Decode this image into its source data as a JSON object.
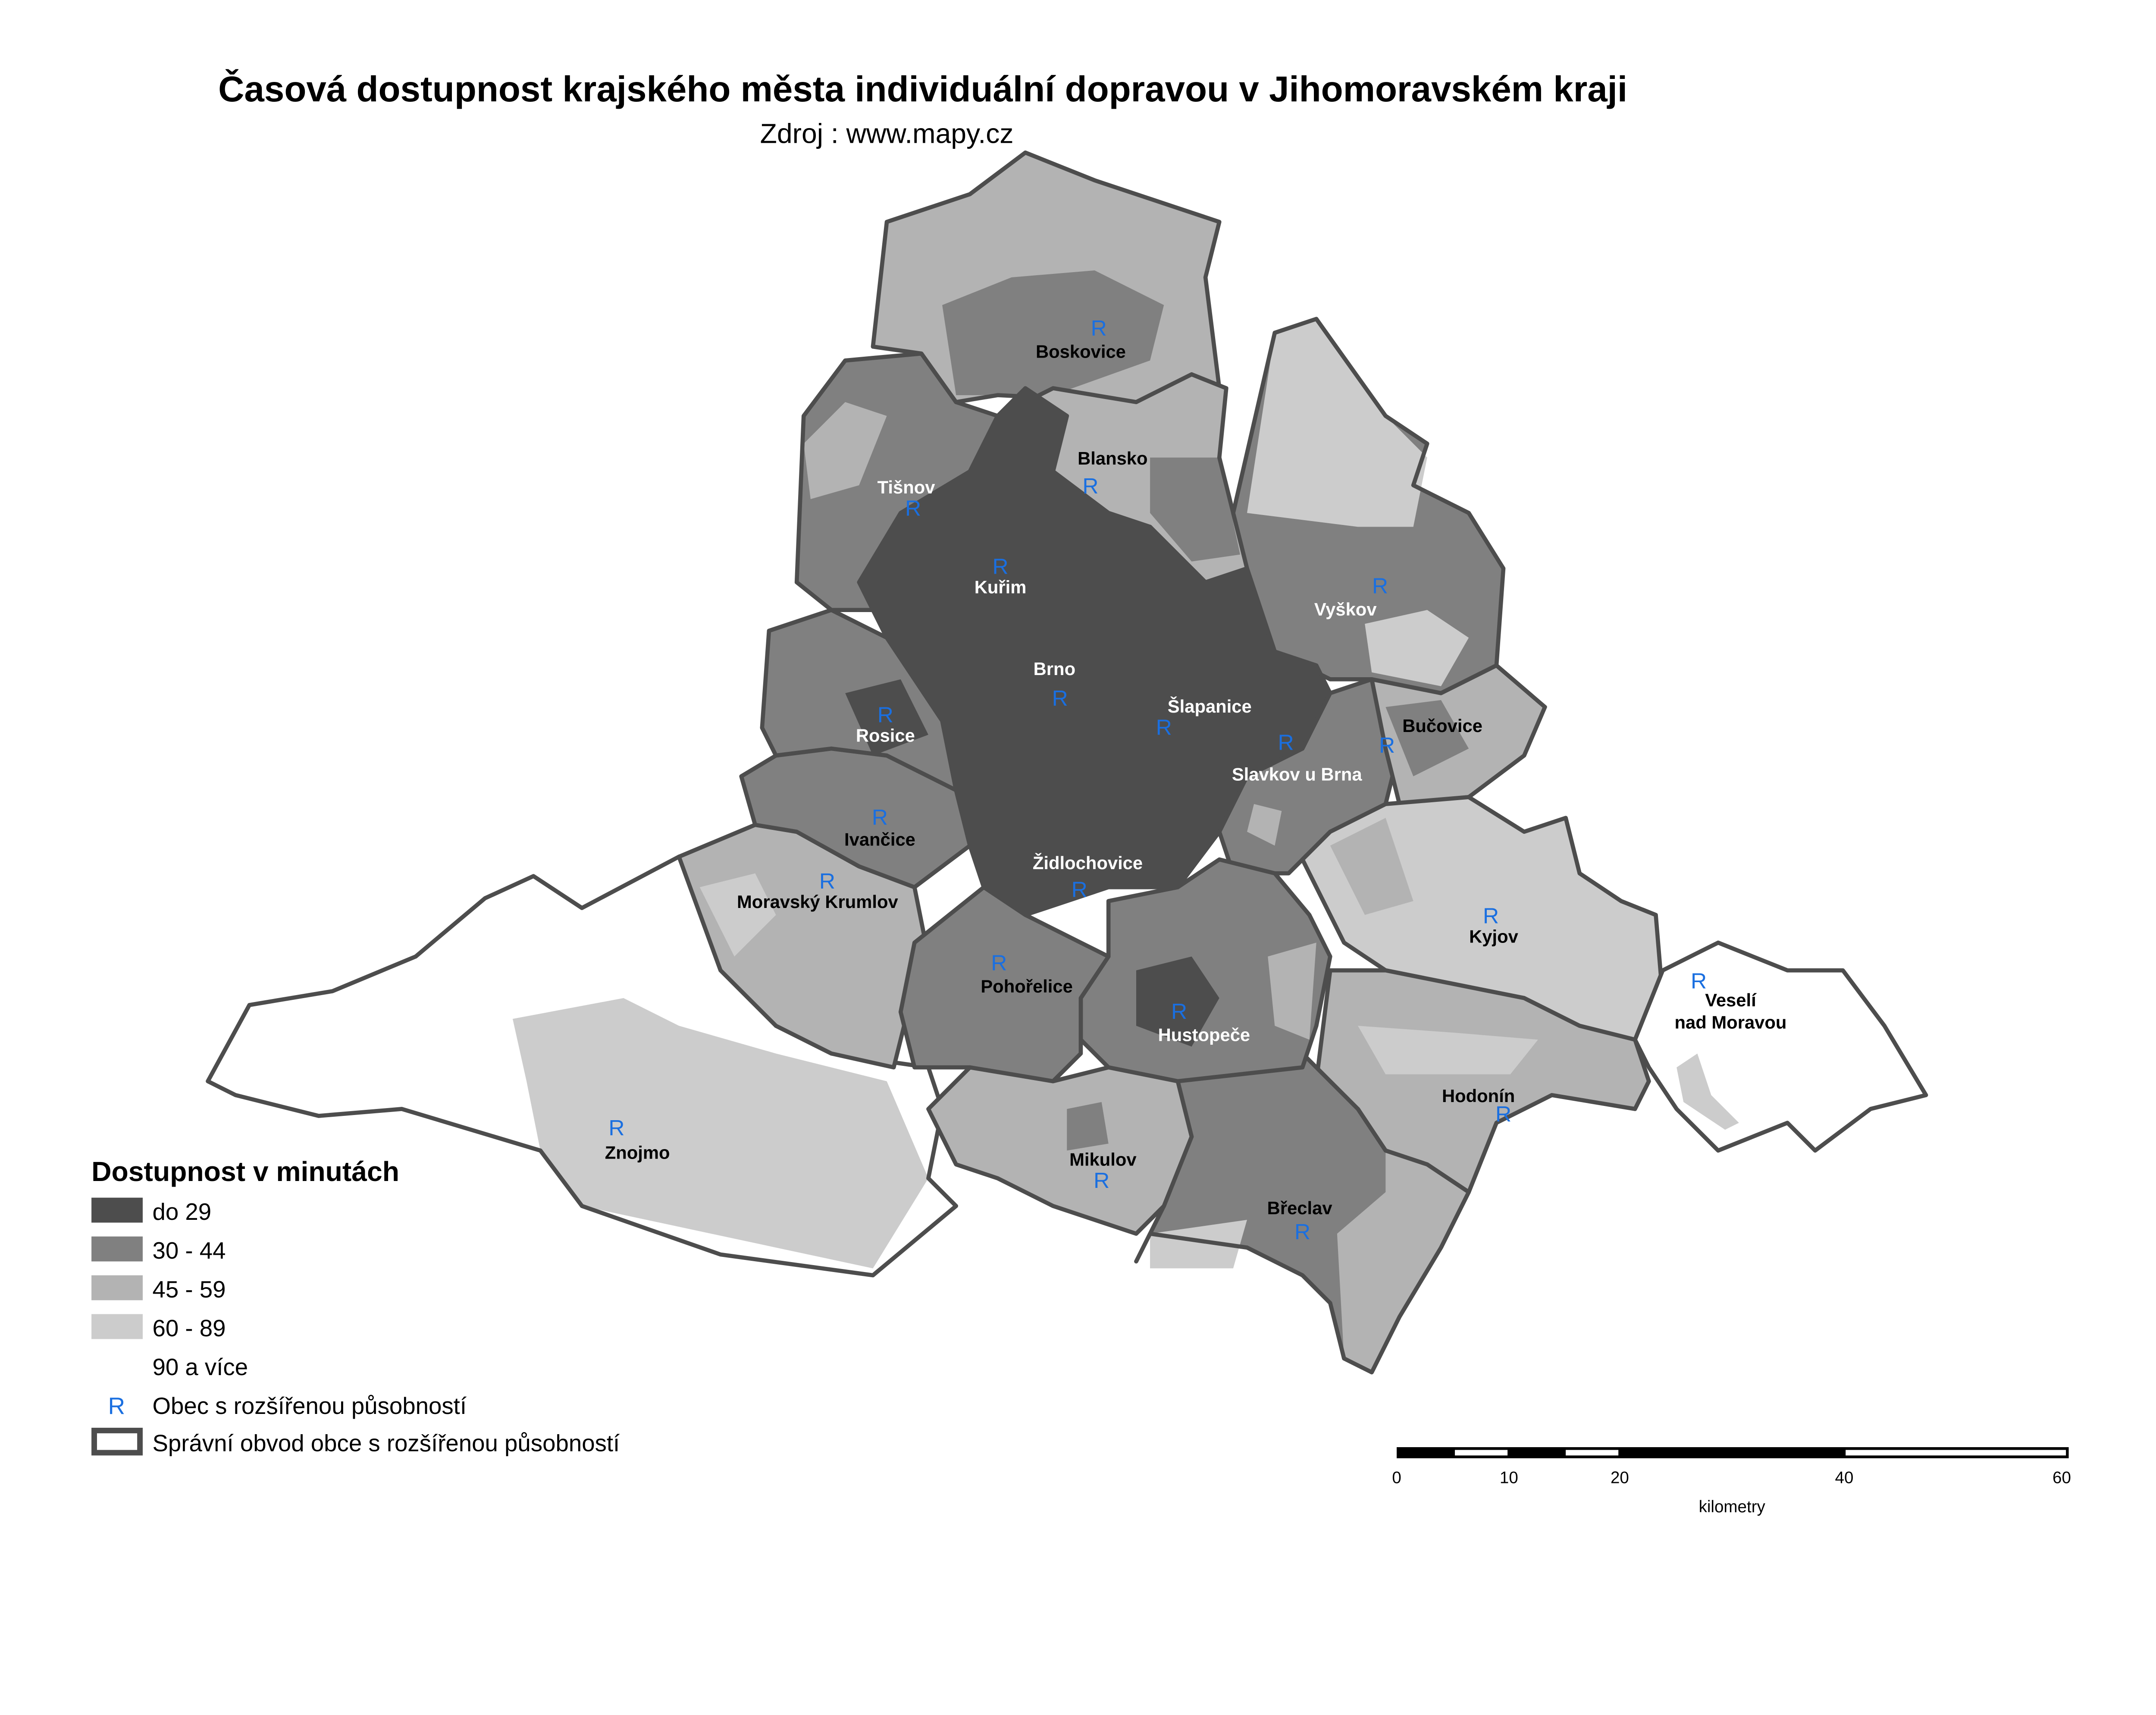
{
  "title": "Časová dostupnost krajského města individuální dopravou v Jihomoravském kraji",
  "source": "Zdroj : www.mapy.cz",
  "colors": {
    "class_do_29": "#4d4d4d",
    "class_30_44": "#808080",
    "class_45_59": "#b3b3b3",
    "class_60_89": "#cccccc",
    "class_90_plus": "#ffffff",
    "r_marker": "#1a6fe0",
    "boundary": "#4d4d4d"
  },
  "legend": {
    "title": "Dostupnost v minutách",
    "classes": [
      "do 29",
      "30 - 44",
      "45 - 59",
      "60 - 89",
      "90 a více"
    ],
    "r_symbol": "R",
    "r_label": "Obec s rozšířenou působností",
    "boundary_label": "Správní obvod obce s rozšířenou působností"
  },
  "scale_bar": {
    "ticks": [
      "0",
      "10",
      "20",
      "40",
      "60"
    ],
    "unit": "kilometry"
  },
  "towns": [
    {
      "name": "Boskovice",
      "class": "45 - 59"
    },
    {
      "name": "Blansko",
      "class": "30 - 44"
    },
    {
      "name": "Tišnov",
      "class": "30 - 44"
    },
    {
      "name": "Kuřim",
      "class": "do 29"
    },
    {
      "name": "Brno",
      "class": "do 29"
    },
    {
      "name": "Šlapanice",
      "class": "do 29"
    },
    {
      "name": "Slavkov u Brna",
      "class": "30 - 44"
    },
    {
      "name": "Vyškov",
      "class": "30 - 44"
    },
    {
      "name": "Bučovice",
      "class": "45 - 59"
    },
    {
      "name": "Rosice",
      "class": "30 - 44"
    },
    {
      "name": "Ivančice",
      "class": "30 - 44"
    },
    {
      "name": "Moravský Krumlov",
      "class": "45 - 59"
    },
    {
      "name": "Židlochovice",
      "class": "do 29"
    },
    {
      "name": "Pohořelice",
      "class": "30 - 44"
    },
    {
      "name": "Hustopeče",
      "class": "30 - 44"
    },
    {
      "name": "Kyjov",
      "class": "60 - 89"
    },
    {
      "name": "Veselí",
      "name2": "nad Moravou",
      "class": "90 a více"
    },
    {
      "name": "Hodonín",
      "class": "45 - 59"
    },
    {
      "name": "Znojmo",
      "class": "60 - 89"
    },
    {
      "name": "Mikulov",
      "class": "45 - 59"
    },
    {
      "name": "Břeclav",
      "class": "30 - 44"
    }
  ]
}
